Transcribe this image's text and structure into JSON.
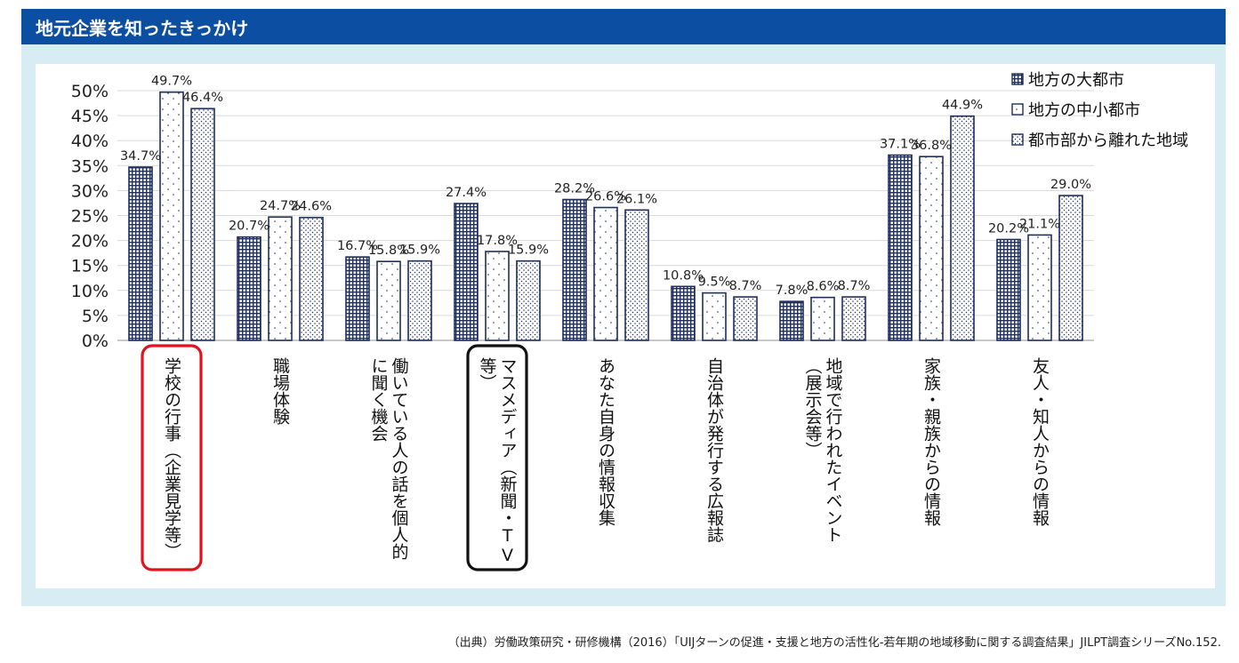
{
  "header": {
    "title": "地元企業を知ったきっかけ"
  },
  "source": "（出典）労働政策研究・研修機構（2016）「UIJターンの促進・支援と地方の活性化-若年期の地域移動に関する調査結果」JILPT調査シリーズNo.152.",
  "colors": {
    "header_bg": "#0b4ea2",
    "panel_bg": "#d8ecf3",
    "bar_stroke": "#1f2f5a",
    "highlight_red": "#e0131d",
    "highlight_black": "#111111"
  },
  "chart_data": {
    "type": "bar",
    "title": "",
    "xlabel": "",
    "ylabel": "",
    "ylim": [
      0,
      50
    ],
    "yticks": [
      "0%",
      "5%",
      "10%",
      "15%",
      "20%",
      "25%",
      "30%",
      "35%",
      "40%",
      "45%",
      "50%"
    ],
    "legend_position": "top-right",
    "categories": [
      {
        "lines": [
          "学校の行事（企業見学等）"
        ],
        "highlight": "red"
      },
      {
        "lines": [
          "職場体験"
        ]
      },
      {
        "lines": [
          "働いている人の話を個人的",
          "に聞く機会"
        ]
      },
      {
        "lines": [
          "マスメディア（新聞・TV",
          "等）"
        ],
        "highlight": "black"
      },
      {
        "lines": [
          "あなた自身の情報収集"
        ]
      },
      {
        "lines": [
          "自治体が発行する広報誌"
        ]
      },
      {
        "lines": [
          "地域で行われたイベント",
          "（展示会等）"
        ]
      },
      {
        "lines": [
          "家族・親族からの情報"
        ]
      },
      {
        "lines": [
          "友人・知人からの情報"
        ]
      }
    ],
    "series": [
      {
        "name": "地方の大都市",
        "pattern": "grid",
        "values": [
          34.7,
          20.7,
          16.7,
          27.4,
          28.2,
          10.8,
          7.8,
          37.1,
          20.2
        ],
        "labels": [
          "34.7%",
          "20.7%",
          "16.7%",
          "27.4%",
          "28.2%",
          "10.8%",
          "7.8%",
          "37.1%",
          "20.2%"
        ]
      },
      {
        "name": "地方の中小都市",
        "pattern": "sparse",
        "values": [
          49.7,
          24.7,
          15.8,
          17.8,
          26.6,
          9.5,
          8.6,
          36.8,
          21.1
        ],
        "labels": [
          "49.7%",
          "24.7%",
          "15.8%",
          "17.8%",
          "26.6%",
          "9.5%",
          "8.6%",
          "36.8%",
          "21.1%"
        ]
      },
      {
        "name": "都市部から離れた地域",
        "pattern": "dots",
        "values": [
          46.4,
          24.6,
          15.9,
          15.9,
          26.1,
          8.7,
          8.7,
          44.9,
          29.0
        ],
        "labels": [
          "46.4%",
          "24.6%",
          "15.9%",
          "15.9%",
          "26.1%",
          "8.7%",
          "8.7%",
          "44.9%",
          "29.0%"
        ]
      }
    ]
  }
}
